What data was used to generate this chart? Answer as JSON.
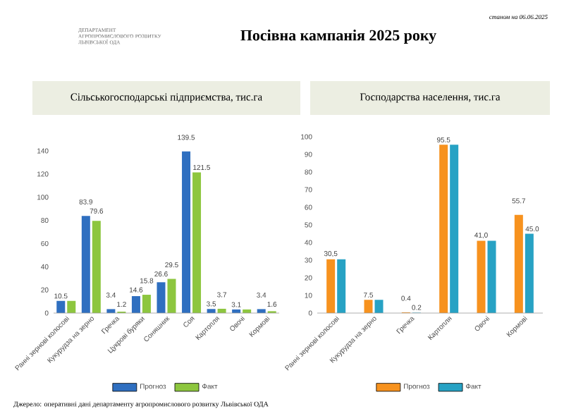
{
  "chart_data": [
    {
      "type": "other",
      "title": "Посівна кампанія 2025 року",
      "annotations": [
        "ДЕПАРТАМЕНТ АГРОПРОМИСЛОВОГО РОЗВИТКУ ЛЬВІВСЬКОЇ ОДА",
        "станом на 06.06.2025",
        "Джерело: оперативні дані департаменту агропромислового розвитку Львівської ОДА"
      ]
    },
    {
      "type": "bar",
      "title": "Сільськогосподарські підприємства, тис.га",
      "categories": [
        "Ранні зернові колосові",
        "Кукурудза на зерно",
        "Гречка",
        "Цукрові буряки",
        "Соняшник",
        "Соя",
        "Картопля",
        "Овочі",
        "Кормові"
      ],
      "series": [
        {
          "name": "Прогноз",
          "color": "#2f6fc0",
          "values": [
            10.5,
            83.9,
            3.4,
            14.6,
            26.6,
            139.5,
            3.5,
            3.1,
            3.4
          ],
          "value_labels": [
            "10.5",
            "83.9",
            "3.4",
            "14.6",
            "26.6",
            "139.5",
            "3.5",
            "3.1",
            "3.4"
          ]
        },
        {
          "name": "Факт",
          "color": "#8dc63f",
          "values": [
            10.5,
            79.6,
            1.2,
            15.8,
            29.5,
            121.5,
            3.7,
            3.1,
            1.6
          ],
          "value_labels": [
            null,
            "79.6",
            "1.2",
            "15.8",
            "29.5",
            "121.5",
            "3.7",
            null,
            "1.6"
          ]
        }
      ],
      "ylim": [
        0,
        140
      ],
      "yticks": [
        0,
        20,
        40,
        60,
        80,
        100,
        120,
        140
      ],
      "legend": "bottom"
    },
    {
      "type": "bar",
      "title": "Господарства населення, тис.га",
      "categories": [
        "Ранні зернові колосові",
        "Кукурудза на зерно",
        "Гречка",
        "Картопля",
        "Овочі",
        "Кормові"
      ],
      "series": [
        {
          "name": "Прогноз",
          "color": "#f7921e",
          "values": [
            30.5,
            7.5,
            0.4,
            95.5,
            41.0,
            55.7
          ],
          "value_labels": [
            "30,5",
            "7.5",
            "0.4",
            "95.5",
            "41,0",
            "55.7"
          ]
        },
        {
          "name": "Факт",
          "color": "#27a2c4",
          "values": [
            30.5,
            7.5,
            0.2,
            95.5,
            41.0,
            45.0
          ],
          "value_labels": [
            null,
            null,
            "0.2",
            null,
            null,
            "45.0"
          ]
        }
      ],
      "ylim": [
        0,
        100
      ],
      "yticks": [
        0,
        10,
        20,
        30,
        40,
        50,
        60,
        70,
        80,
        90,
        100
      ],
      "legend": "bottom"
    }
  ]
}
